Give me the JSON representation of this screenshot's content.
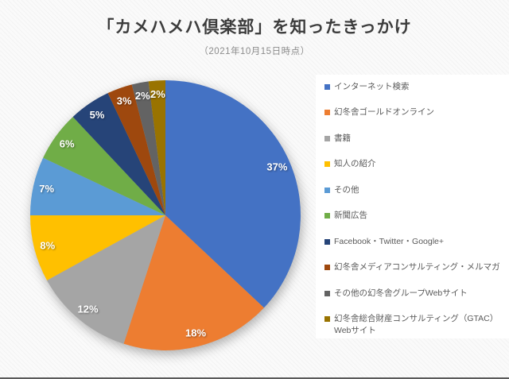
{
  "page": {
    "background_color": "#fafafa",
    "bottom_edge_color": "#5a5a5a"
  },
  "chart_data": {
    "type": "pie",
    "title": "「カメハメハ倶楽部」を知ったきっかけ",
    "subtitle": "（2021年10月15日時点）",
    "unit": "%",
    "legend_position": "right",
    "data_label_style": "white-bold-percent-inside",
    "start_angle_deg": 0,
    "direction": "clockwise",
    "series": [
      {
        "label": "インターネット検索",
        "value": 37,
        "color": "#4472C4",
        "data_label": "37%"
      },
      {
        "label": "幻冬舎ゴールドオンライン",
        "value": 18,
        "color": "#ED7D31",
        "data_label": "18%"
      },
      {
        "label": "書籍",
        "value": 12,
        "color": "#A5A5A5",
        "data_label": "12%"
      },
      {
        "label": "知人の紹介",
        "value": 8,
        "color": "#FFC000",
        "data_label": "8%"
      },
      {
        "label": "その他",
        "value": 7,
        "color": "#5B9BD5",
        "data_label": "7%"
      },
      {
        "label": "新聞広告",
        "value": 6,
        "color": "#70AD47",
        "data_label": "6%"
      },
      {
        "label": "Facebook・Twitter・Google+",
        "value": 5,
        "color": "#264478",
        "data_label": "5%"
      },
      {
        "label": "幻冬舎メディアコンサルティング・メルマガ",
        "value": 3,
        "color": "#9E480E",
        "data_label": "3%"
      },
      {
        "label": "その他の幻冬舎グループWebサイト",
        "value": 2,
        "color": "#636363",
        "data_label": "2%"
      },
      {
        "label": "幻冬舎総合財産コンサルティング（GTAC）Webサイト",
        "value": 2,
        "color": "#997300",
        "data_label": "2%"
      }
    ]
  }
}
